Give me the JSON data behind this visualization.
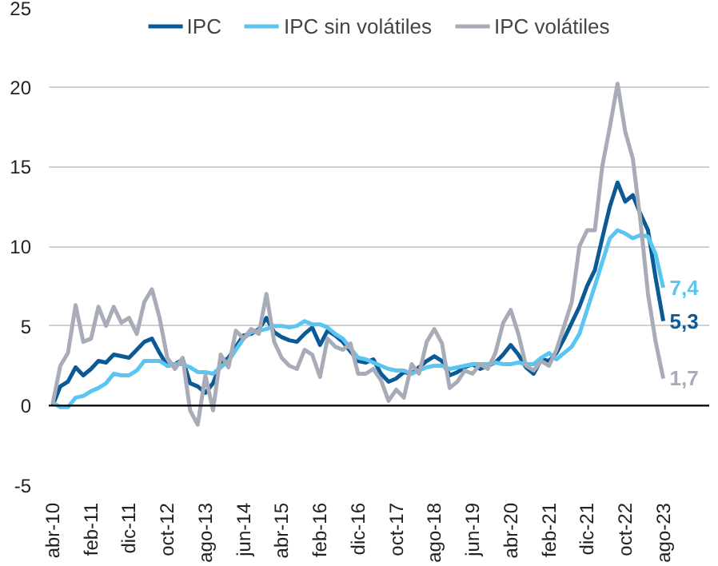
{
  "chart_data": {
    "type": "line",
    "x": [
      "2010-04",
      "2010-06",
      "2010-08",
      "2010-10",
      "2010-12",
      "2011-02",
      "2011-04",
      "2011-06",
      "2011-08",
      "2011-10",
      "2011-12",
      "2012-02",
      "2012-04",
      "2012-06",
      "2012-08",
      "2012-10",
      "2012-12",
      "2013-02",
      "2013-04",
      "2013-06",
      "2013-08",
      "2013-10",
      "2013-12",
      "2014-02",
      "2014-04",
      "2014-06",
      "2014-08",
      "2014-10",
      "2014-12",
      "2015-02",
      "2015-04",
      "2015-06",
      "2015-08",
      "2015-10",
      "2015-12",
      "2016-02",
      "2016-04",
      "2016-06",
      "2016-08",
      "2016-10",
      "2016-12",
      "2017-02",
      "2017-04",
      "2017-06",
      "2017-08",
      "2017-10",
      "2017-12",
      "2018-02",
      "2018-04",
      "2018-06",
      "2018-08",
      "2018-10",
      "2018-12",
      "2019-02",
      "2019-04",
      "2019-06",
      "2019-08",
      "2019-10",
      "2019-12",
      "2020-02",
      "2020-04",
      "2020-06",
      "2020-08",
      "2020-10",
      "2020-12",
      "2021-02",
      "2021-04",
      "2021-06",
      "2021-08",
      "2021-10",
      "2021-12",
      "2022-02",
      "2022-04",
      "2022-06",
      "2022-08",
      "2022-10",
      "2022-12",
      "2023-02",
      "2023-04",
      "2023-06",
      "2023-08"
    ],
    "series": [
      {
        "name": "IPC",
        "color": "#0b5a96",
        "values": [
          0,
          1.2,
          1.5,
          2.4,
          1.9,
          2.3,
          2.8,
          2.7,
          3.2,
          3.1,
          3.0,
          3.5,
          4.0,
          4.2,
          3.3,
          2.5,
          2.6,
          2.9,
          1.4,
          1.2,
          0.8,
          1.4,
          2.6,
          3.0,
          3.7,
          4.4,
          4.5,
          4.8,
          5.5,
          4.6,
          4.3,
          4.1,
          4.0,
          4.5,
          4.9,
          3.8,
          4.7,
          4.4,
          4.0,
          3.4,
          2.8,
          2.7,
          2.9,
          2.0,
          1.5,
          1.7,
          2.1,
          2.0,
          2.4,
          2.8,
          3.1,
          2.8,
          1.9,
          2.1,
          2.4,
          2.6,
          2.3,
          2.5,
          2.7,
          3.2,
          3.8,
          3.2,
          2.4,
          2.0,
          2.9,
          2.8,
          3.3,
          4.2,
          5.2,
          6.2,
          7.5,
          8.5,
          10.5,
          12.5,
          14.0,
          12.8,
          13.2,
          12.0,
          11.0,
          8.0,
          5.3
        ],
        "value_labels": [
          null,
          null,
          null,
          null,
          null,
          null,
          null,
          null,
          null,
          null,
          null,
          null,
          null,
          null,
          null,
          null,
          null,
          null,
          null,
          null,
          null,
          null,
          null,
          null,
          null,
          null,
          null,
          null,
          null,
          null,
          null,
          null,
          null,
          null,
          null,
          null,
          null,
          null,
          null,
          null,
          null,
          null,
          null,
          null,
          null,
          null,
          null,
          null,
          null,
          null,
          null,
          null,
          null,
          null,
          null,
          null,
          null,
          null,
          null,
          null,
          null,
          null,
          null,
          null,
          null,
          null,
          null,
          null,
          null,
          null,
          null,
          null,
          null,
          null,
          null,
          null,
          null,
          null,
          null,
          null,
          "5,3"
        ]
      },
      {
        "name": "IPC sin volátiles",
        "color": "#5bc5f2",
        "values": [
          0.2,
          -0.1,
          -0.1,
          0.5,
          0.6,
          0.9,
          1.1,
          1.4,
          2.0,
          1.9,
          1.9,
          2.2,
          2.8,
          2.8,
          2.8,
          2.5,
          2.6,
          2.6,
          2.4,
          2.1,
          2.1,
          2.0,
          2.4,
          2.8,
          3.5,
          4.2,
          4.6,
          4.7,
          4.8,
          5.0,
          5.0,
          4.9,
          5.0,
          5.3,
          5.1,
          5.1,
          4.9,
          4.5,
          4.2,
          3.6,
          3.0,
          2.9,
          2.7,
          2.5,
          2.3,
          2.2,
          2.2,
          2.0,
          2.2,
          2.4,
          2.5,
          2.5,
          2.3,
          2.4,
          2.5,
          2.6,
          2.6,
          2.6,
          2.7,
          2.6,
          2.6,
          2.7,
          2.6,
          2.6,
          3.0,
          3.3,
          2.9,
          3.3,
          3.7,
          4.5,
          6.0,
          7.5,
          9.0,
          10.5,
          11.0,
          10.8,
          10.5,
          10.7,
          10.6,
          9.5,
          7.4
        ],
        "value_labels": [
          null,
          null,
          null,
          null,
          null,
          null,
          null,
          null,
          null,
          null,
          null,
          null,
          null,
          null,
          null,
          null,
          null,
          null,
          null,
          null,
          null,
          null,
          null,
          null,
          null,
          null,
          null,
          null,
          null,
          null,
          null,
          null,
          null,
          null,
          null,
          null,
          null,
          null,
          null,
          null,
          null,
          null,
          null,
          null,
          null,
          null,
          null,
          null,
          null,
          null,
          null,
          null,
          null,
          null,
          null,
          null,
          null,
          null,
          null,
          null,
          null,
          null,
          null,
          null,
          null,
          null,
          null,
          null,
          null,
          null,
          null,
          null,
          null,
          null,
          null,
          null,
          null,
          null,
          null,
          null,
          "7,4"
        ]
      },
      {
        "name": "IPC volátiles",
        "color": "#a7acb8",
        "values": [
          0.1,
          2.5,
          3.3,
          6.3,
          4.0,
          4.2,
          6.2,
          5.0,
          6.2,
          5.2,
          5.5,
          4.5,
          6.5,
          7.3,
          5.5,
          3.0,
          2.3,
          3.0,
          -0.3,
          -1.2,
          1.9,
          -0.3,
          3.2,
          2.4,
          4.7,
          4.2,
          4.8,
          4.5,
          7.0,
          4.0,
          3.0,
          2.5,
          2.3,
          3.5,
          3.2,
          1.8,
          4.2,
          3.7,
          3.5,
          3.9,
          2.0,
          2.0,
          2.3,
          1.6,
          0.3,
          1.0,
          0.5,
          2.6,
          2.0,
          4.0,
          4.8,
          3.9,
          1.1,
          1.5,
          2.2,
          2.0,
          2.6,
          2.3,
          3.3,
          5.2,
          6.0,
          4.5,
          2.5,
          2.2,
          2.8,
          2.5,
          3.5,
          5.0,
          6.5,
          10.0,
          11.0,
          11.0,
          15.0,
          17.5,
          20.2,
          17.2,
          15.5,
          11.5,
          7.0,
          4.0,
          1.7
        ],
        "value_labels": [
          null,
          null,
          null,
          null,
          null,
          null,
          null,
          null,
          null,
          null,
          null,
          null,
          null,
          null,
          null,
          null,
          null,
          null,
          null,
          null,
          null,
          null,
          null,
          null,
          null,
          null,
          null,
          null,
          null,
          null,
          null,
          null,
          null,
          null,
          null,
          null,
          null,
          null,
          null,
          null,
          null,
          null,
          null,
          null,
          null,
          null,
          null,
          null,
          null,
          null,
          null,
          null,
          null,
          null,
          null,
          null,
          null,
          null,
          null,
          null,
          null,
          null,
          null,
          null,
          null,
          null,
          null,
          null,
          null,
          null,
          null,
          null,
          null,
          null,
          null,
          null,
          null,
          null,
          null,
          null,
          "1,7"
        ]
      }
    ],
    "xlim": [
      "2010-03",
      "2024-08"
    ],
    "xticks": [
      {
        "value": "2010-04",
        "label": "abr-10"
      },
      {
        "value": "2011-02",
        "label": "feb-11"
      },
      {
        "value": "2011-12",
        "label": "dic-11"
      },
      {
        "value": "2012-10",
        "label": "oct-12"
      },
      {
        "value": "2013-08",
        "label": "ago-13"
      },
      {
        "value": "2014-06",
        "label": "jun-14"
      },
      {
        "value": "2015-04",
        "label": "abr-15"
      },
      {
        "value": "2016-02",
        "label": "feb-16"
      },
      {
        "value": "2016-12",
        "label": "dic-16"
      },
      {
        "value": "2017-10",
        "label": "oct-17"
      },
      {
        "value": "2018-08",
        "label": "ago-18"
      },
      {
        "value": "2019-06",
        "label": "jun-19"
      },
      {
        "value": "2020-04",
        "label": "abr-20"
      },
      {
        "value": "2021-02",
        "label": "feb-21"
      },
      {
        "value": "2021-12",
        "label": "dic-21"
      },
      {
        "value": "2022-10",
        "label": "oct-22"
      },
      {
        "value": "2023-08",
        "label": "ago-23"
      }
    ],
    "ylim": [
      -5,
      25
    ],
    "yticks": [
      -5,
      0,
      5,
      10,
      15,
      20,
      25
    ],
    "grid": "y",
    "legend": "top",
    "line_style": "solid",
    "ref_lines": [
      {
        "axis": "y",
        "value": 0,
        "color": "#000000"
      }
    ]
  }
}
